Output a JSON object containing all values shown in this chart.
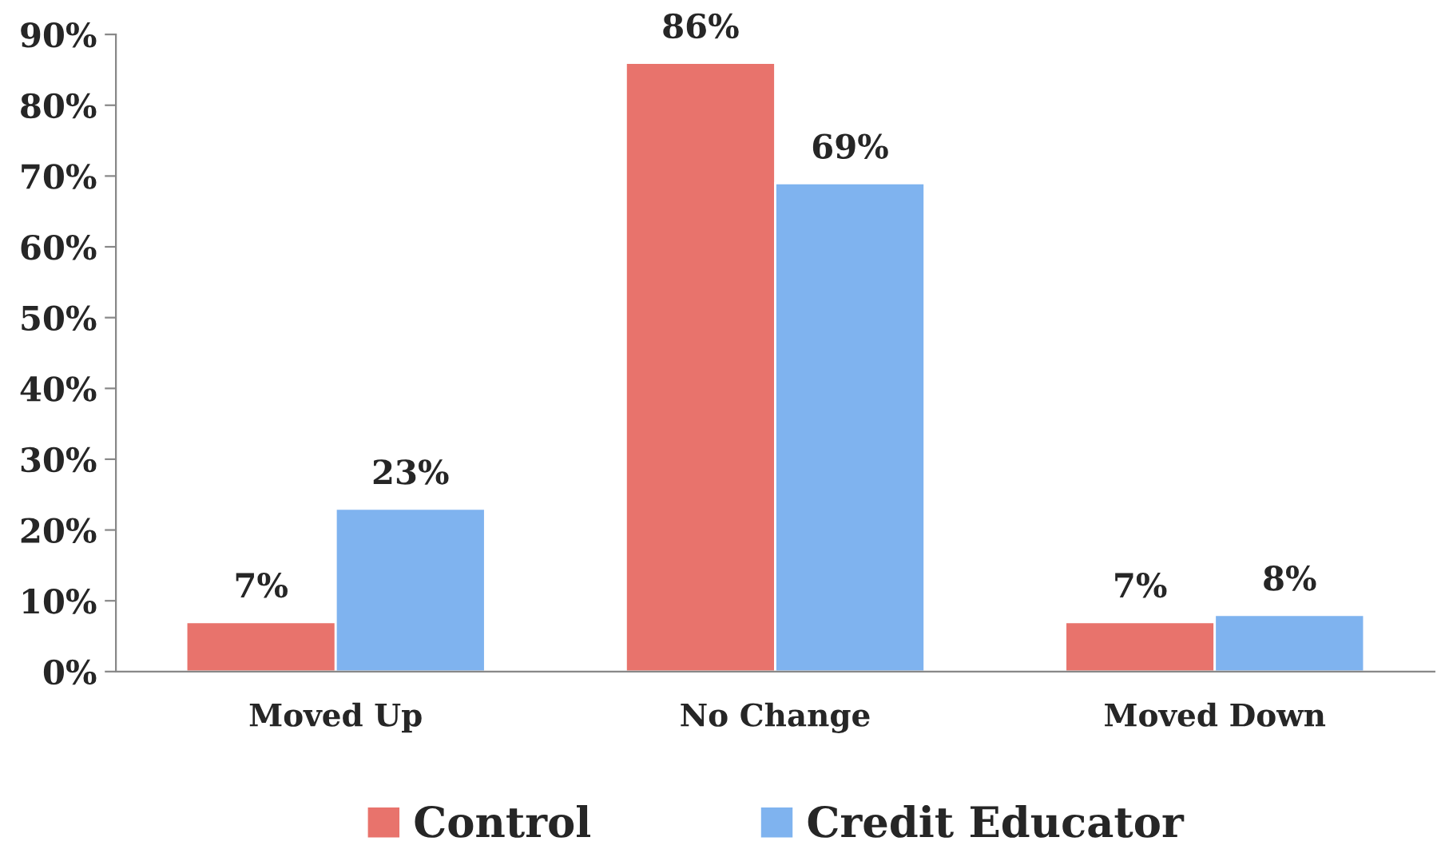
{
  "chart_data": {
    "type": "bar",
    "categories": [
      "Moved Up",
      "No Change",
      "Moved Down"
    ],
    "series": [
      {
        "name": "Control",
        "color": "#e8736c",
        "values": [
          7,
          86,
          7
        ],
        "value_labels": [
          "7%",
          "86%",
          "7%"
        ]
      },
      {
        "name": "Credit Educator",
        "color": "#7fb3ef",
        "values": [
          23,
          69,
          8
        ],
        "value_labels": [
          "23%",
          "69%",
          "8%"
        ]
      }
    ],
    "ylim": [
      0,
      90
    ],
    "yticks": [
      {
        "value": 0,
        "label": "0%"
      },
      {
        "value": 10,
        "label": "10%"
      },
      {
        "value": 20,
        "label": "20%"
      },
      {
        "value": 30,
        "label": "30%"
      },
      {
        "value": 40,
        "label": "40%"
      },
      {
        "value": 50,
        "label": "50%"
      },
      {
        "value": 60,
        "label": "60%"
      },
      {
        "value": 70,
        "label": "70%"
      },
      {
        "value": 80,
        "label": "80%"
      },
      {
        "value": 90,
        "label": "90%"
      }
    ],
    "grid": false,
    "legend": "bottom"
  }
}
